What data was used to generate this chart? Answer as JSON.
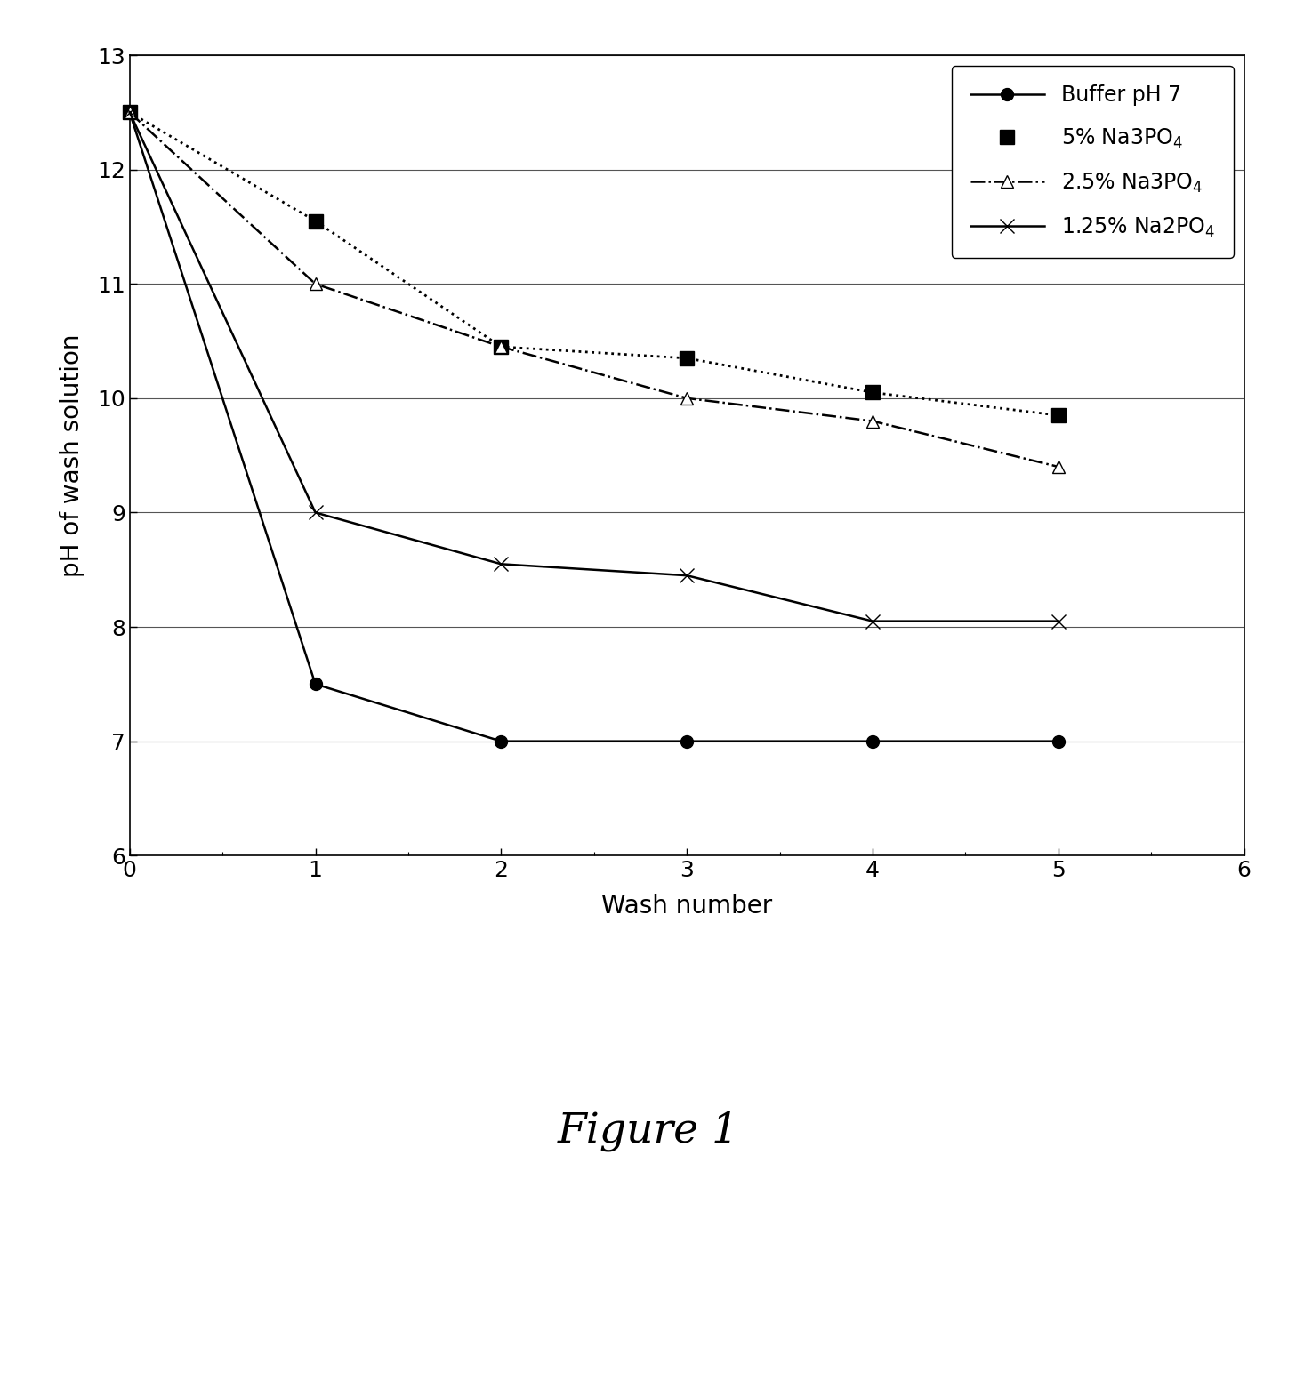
{
  "title": "Figure 1",
  "xlabel": "Wash number",
  "ylabel": "pH of wash solution",
  "xlim": [
    0,
    6
  ],
  "ylim": [
    6,
    13
  ],
  "yticks": [
    6,
    7,
    8,
    9,
    10,
    11,
    12,
    13
  ],
  "xticks": [
    0,
    1,
    2,
    3,
    4,
    5,
    6
  ],
  "series": [
    {
      "label": "Buffer pH 7",
      "x": [
        0,
        1,
        2,
        3,
        4,
        5
      ],
      "y": [
        12.5,
        7.5,
        7.0,
        7.0,
        7.0,
        7.0
      ],
      "color": "black",
      "linestyle": "-",
      "marker": "o",
      "markersize": 10,
      "markerfacecolor": "black",
      "markeredgecolor": "black",
      "linewidth": 1.8
    },
    {
      "label": "5% Na3PO$_4$",
      "x": [
        0,
        1,
        2,
        3,
        4,
        5
      ],
      "y": [
        12.5,
        11.55,
        10.45,
        10.35,
        10.05,
        9.85
      ],
      "color": "black",
      "linestyle": ":",
      "marker": "s",
      "markersize": 11,
      "markerfacecolor": "black",
      "markeredgecolor": "black",
      "linewidth": 2.0
    },
    {
      "label": "2.5% Na3PO$_4$",
      "x": [
        0,
        1,
        2,
        3,
        4,
        5
      ],
      "y": [
        12.5,
        11.0,
        10.45,
        10.0,
        9.8,
        9.4
      ],
      "color": "black",
      "linestyle": "-.",
      "marker": "^",
      "markersize": 10,
      "markerfacecolor": "white",
      "markeredgecolor": "black",
      "linewidth": 1.8
    },
    {
      "label": "1.25% Na2PO$_4$",
      "x": [
        0,
        1,
        2,
        3,
        4,
        5
      ],
      "y": [
        12.5,
        9.0,
        8.55,
        8.45,
        8.05,
        8.05
      ],
      "color": "black",
      "linestyle": "-",
      "marker": "x",
      "markersize": 11,
      "markerfacecolor": "black",
      "markeredgecolor": "black",
      "linewidth": 1.8
    }
  ],
  "background_color": "white",
  "grid_color": "#555555",
  "grid_linewidth": 0.8
}
